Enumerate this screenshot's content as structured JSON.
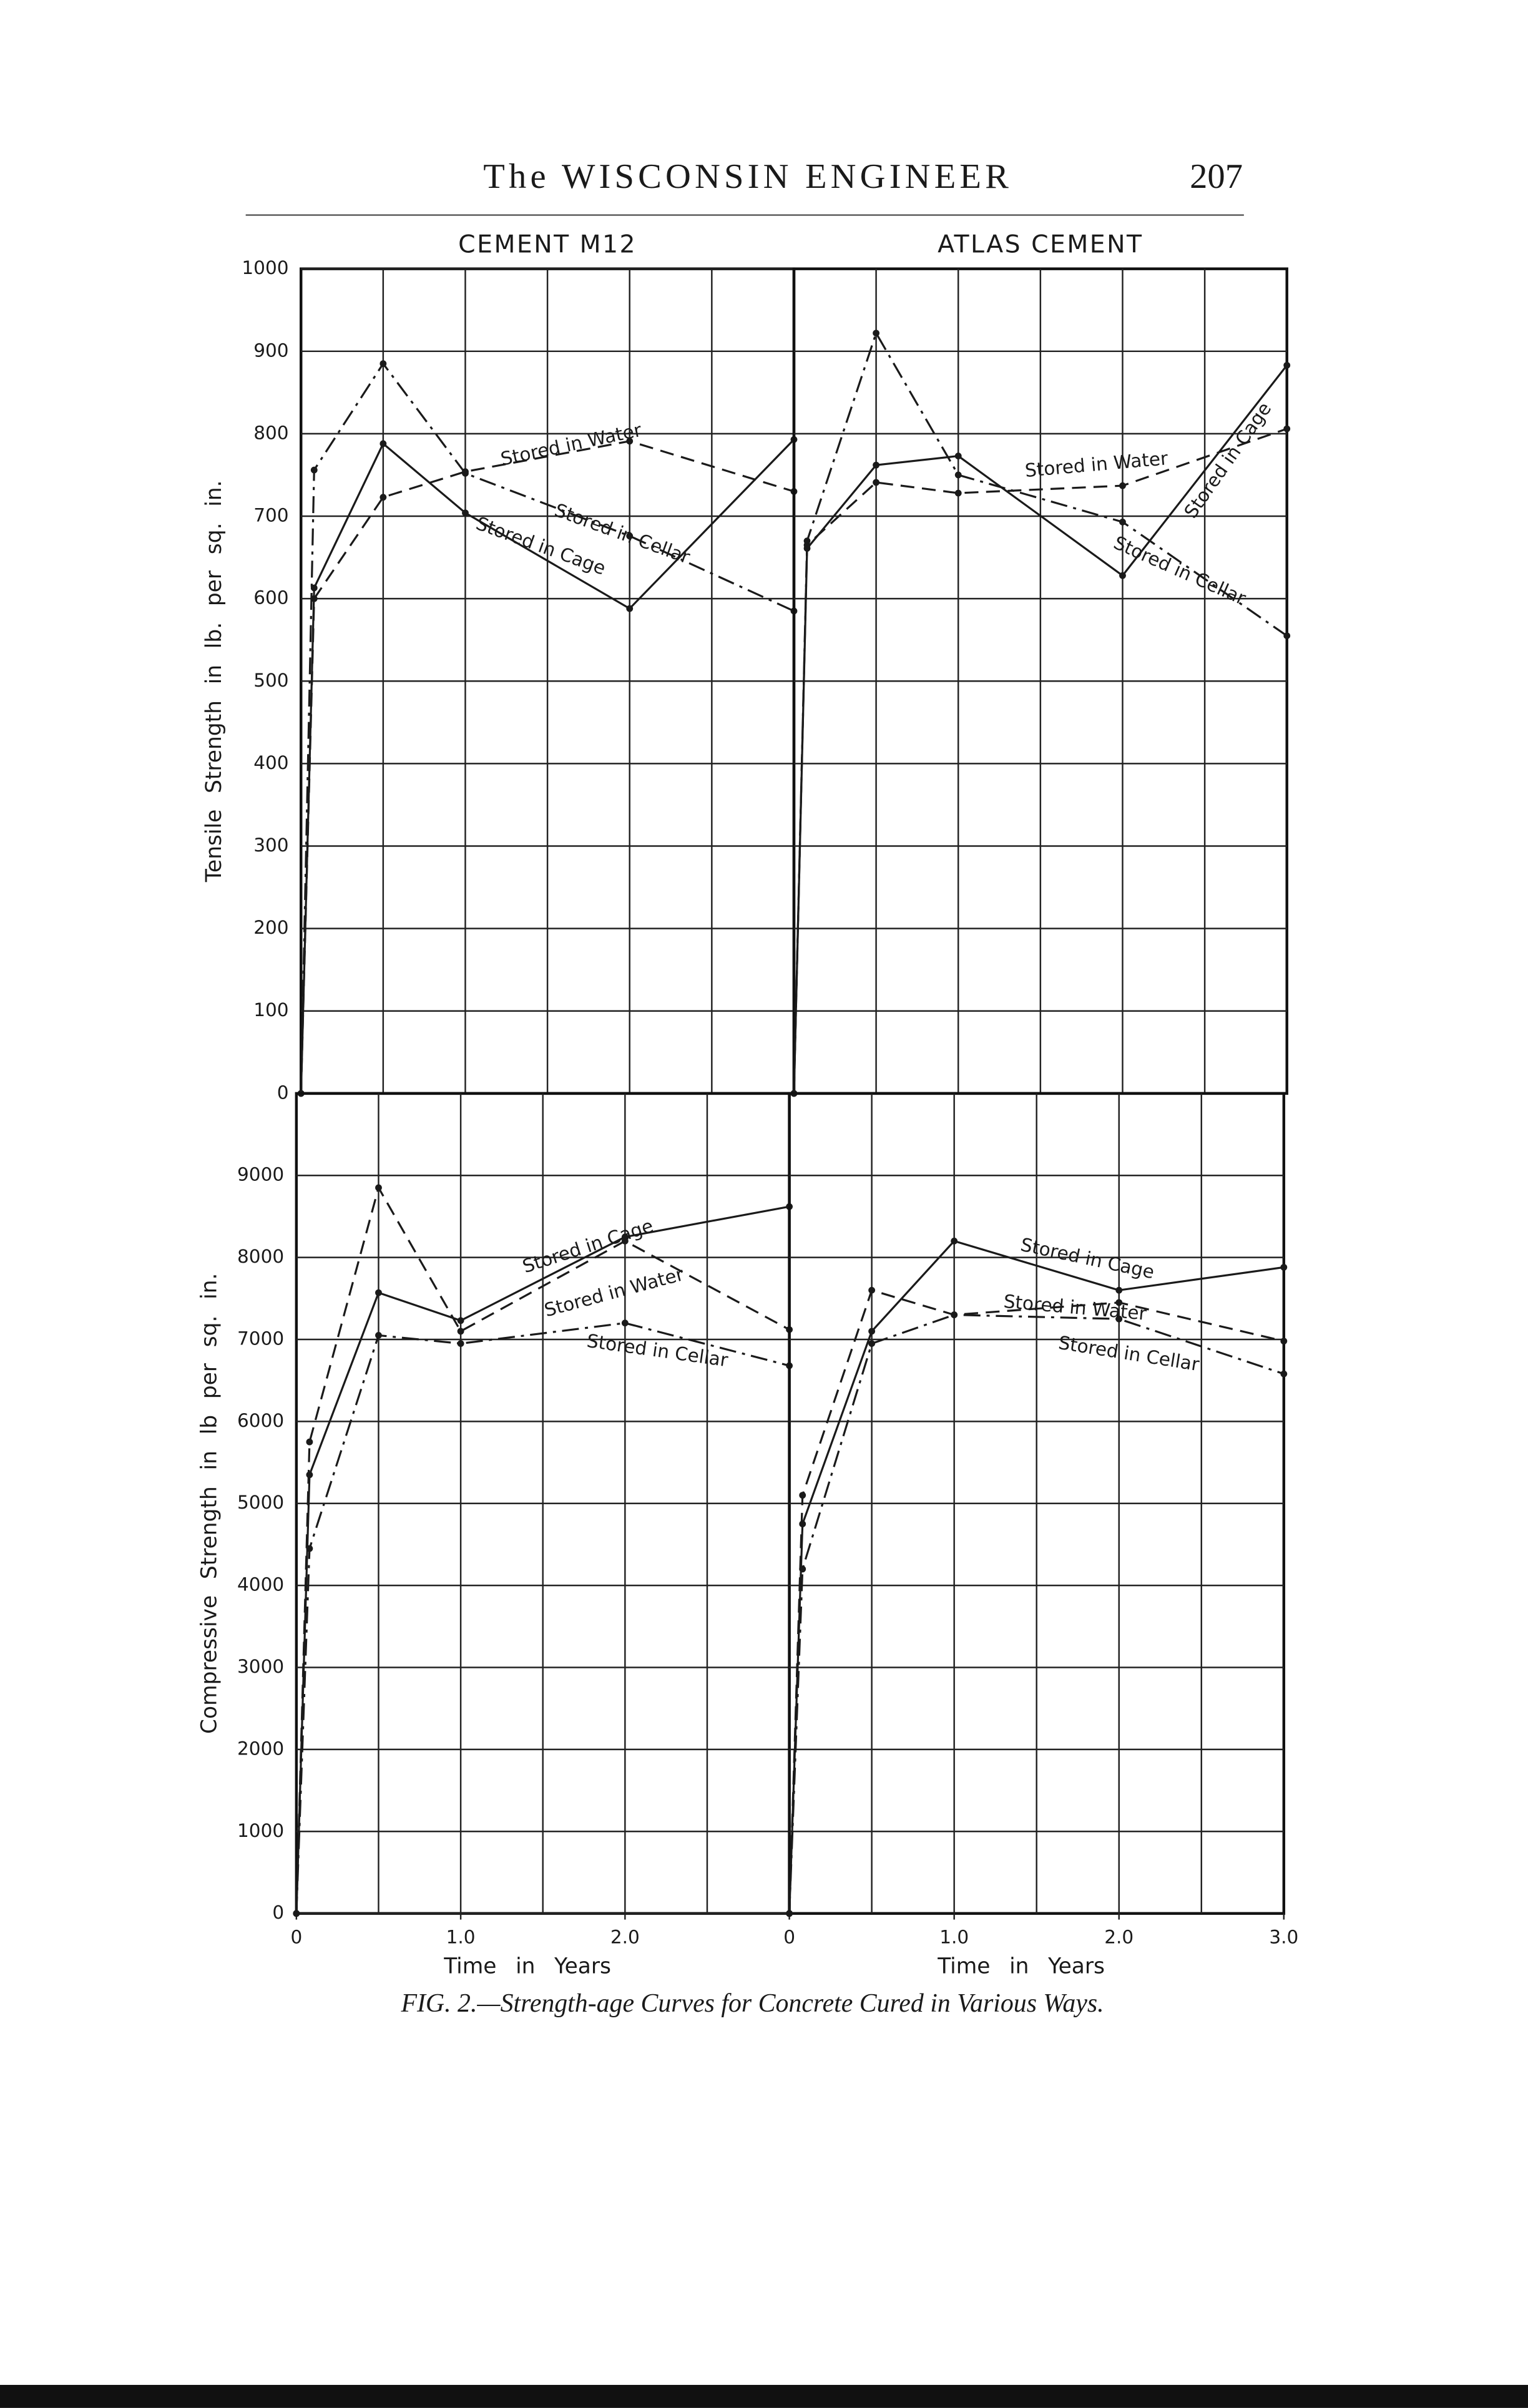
{
  "header": {
    "title": "The WISCONSIN ENGINEER",
    "page": "207"
  },
  "caption": "FIG. 2.—Strength-age Curves for Concrete Cured in Various Ways.",
  "chart_data": [
    {
      "type": "line",
      "title": "CEMENT M12",
      "ylabel": "Tensile Strength in lb. per sq. in.",
      "x": [
        0,
        0.08,
        0.5,
        1,
        2,
        3
      ],
      "xlim": [
        0,
        3
      ],
      "ylim": [
        0,
        1000
      ],
      "yticks": [
        0,
        100,
        200,
        300,
        400,
        500,
        600,
        700,
        800,
        900,
        1000
      ],
      "xgrid": [
        0.5,
        1,
        1.5,
        2,
        2.5
      ],
      "series": [
        {
          "name": "Stored in Water",
          "color": "#1a1a1a",
          "style": "dashed",
          "values": [
            0,
            600,
            723,
            754,
            791,
            730
          ]
        },
        {
          "name": "Stored in Cage",
          "color": "#1a1a1a",
          "style": "solid",
          "values": [
            0,
            613,
            788,
            704,
            588,
            793
          ]
        },
        {
          "name": "Stored in Cellar",
          "color": "#1a1a1a",
          "style": "dash-dot",
          "values": [
            0,
            756,
            885,
            752,
            676,
            585
          ]
        }
      ]
    },
    {
      "type": "line",
      "title": "ATLAS CEMENT",
      "x": [
        0,
        0.08,
        0.5,
        1,
        2,
        3
      ],
      "xlim": [
        0,
        3
      ],
      "ylim": [
        0,
        1000
      ],
      "ygrid": [
        100,
        200,
        300,
        400,
        500,
        600,
        700,
        800,
        900
      ],
      "xgrid": [
        0.5,
        1,
        1.5,
        2,
        2.5
      ],
      "series": [
        {
          "name": "Stored in Water",
          "color": "#1a1a1a",
          "style": "dashed",
          "values": [
            0,
            665,
            741,
            728,
            737,
            806
          ]
        },
        {
          "name": "Stored in Cage",
          "color": "#1a1a1a",
          "style": "solid",
          "values": [
            0,
            661,
            762,
            773,
            628,
            883
          ]
        },
        {
          "name": "Stored in Cellar",
          "color": "#1a1a1a",
          "style": "dash-dot",
          "values": [
            0,
            670,
            922,
            750,
            693,
            555
          ]
        }
      ]
    },
    {
      "type": "line",
      "ylabel": "Compressive Strength in lb per sq. in.",
      "xlabel": "Time in Years",
      "x": [
        0,
        0.08,
        0.5,
        1,
        2,
        3
      ],
      "xlim": [
        0,
        3
      ],
      "ylim": [
        0,
        10000
      ],
      "yticks": [
        0,
        1000,
        2000,
        3000,
        4000,
        5000,
        6000,
        7000,
        8000,
        9000
      ],
      "xticks": [
        0,
        {
          "value": 1,
          "label": "1.0"
        },
        {
          "value": 2,
          "label": "2.0"
        }
      ],
      "xgrid": [
        0.5,
        1,
        1.5,
        2,
        2.5
      ],
      "series": [
        {
          "name": "Stored in Water",
          "color": "#1a1a1a",
          "style": "dashed",
          "values": [
            0,
            5750,
            8850,
            7100,
            8200,
            7120
          ]
        },
        {
          "name": "Stored in Cage",
          "color": "#1a1a1a",
          "style": "solid",
          "values": [
            0,
            5350,
            7570,
            7230,
            8250,
            8620
          ]
        },
        {
          "name": "Stored in Cellar",
          "color": "#1a1a1a",
          "style": "dash-dot",
          "values": [
            0,
            4450,
            7050,
            6950,
            7200,
            6680
          ]
        }
      ]
    },
    {
      "type": "line",
      "xlabel": "Time in Years",
      "x": [
        0,
        0.08,
        0.5,
        1,
        2,
        3
      ],
      "xlim": [
        0,
        3
      ],
      "ylim": [
        0,
        10000
      ],
      "ygrid": [
        1000,
        2000,
        3000,
        4000,
        5000,
        6000,
        7000,
        8000,
        9000
      ],
      "xticks": [
        0,
        {
          "value": 1,
          "label": "1.0"
        },
        {
          "value": 2,
          "label": "2.0"
        },
        {
          "value": 3,
          "label": "3.0"
        }
      ],
      "xgrid": [
        0.5,
        1,
        1.5,
        2,
        2.5
      ],
      "series": [
        {
          "name": "Stored in Water",
          "color": "#1a1a1a",
          "style": "dashed",
          "values": [
            0,
            5100,
            7600,
            7300,
            7450,
            6980
          ]
        },
        {
          "name": "Stored in Cage",
          "color": "#1a1a1a",
          "style": "solid",
          "values": [
            0,
            4750,
            7100,
            8200,
            7600,
            7880
          ]
        },
        {
          "name": "Stored in Cellar",
          "color": "#1a1a1a",
          "style": "dash-dot",
          "values": [
            0,
            4200,
            6950,
            7300,
            7250,
            6580
          ]
        }
      ]
    }
  ]
}
